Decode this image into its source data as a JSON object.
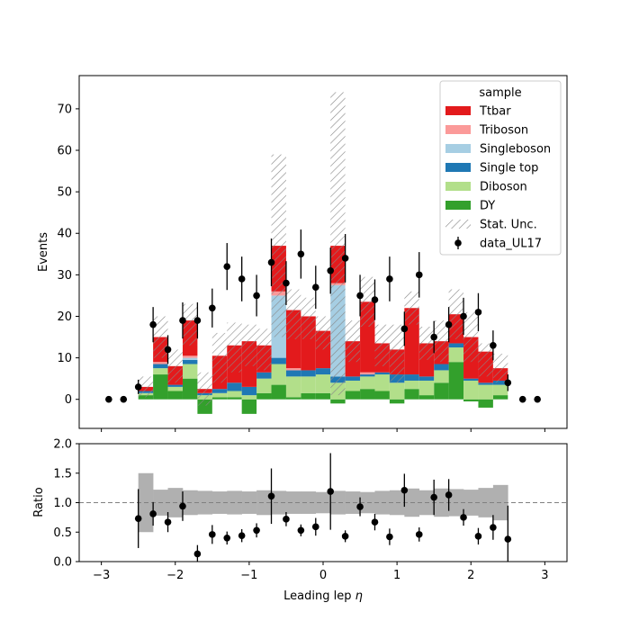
{
  "chart_data": {
    "type": "bar",
    "xlabel": "Leading lep $\\eta$",
    "xlabel_text": "Leading lep ",
    "xlabel_symbol": "η",
    "xlim": [
      -3.3,
      3.3
    ],
    "x_ticks": [
      -3,
      -2,
      -1,
      0,
      1,
      2,
      3
    ],
    "x_tick_labels": [
      "−3",
      "−2",
      "−1",
      "0",
      "1",
      "2",
      "3"
    ],
    "main": {
      "ylabel": "Events",
      "ylim": [
        -7,
        78
      ],
      "y_ticks": [
        0,
        10,
        20,
        30,
        40,
        50,
        60,
        70
      ],
      "y_tick_labels": [
        "0",
        "10",
        "20",
        "30",
        "40",
        "50",
        "60",
        "70"
      ]
    },
    "ratio": {
      "ylabel": "Ratio",
      "ylim": [
        0.0,
        2.0
      ],
      "y_ticks": [
        0.0,
        0.5,
        1.0,
        1.5,
        2.0
      ],
      "y_tick_labels": [
        "0.0",
        "0.5",
        "1.0",
        "1.5",
        "2.0"
      ],
      "reference_line": 1.0
    },
    "bin_edges": [
      -2.5,
      -2.3,
      -2.1,
      -1.9,
      -1.7,
      -1.5,
      -1.3,
      -1.1,
      -0.9,
      -0.7,
      -0.5,
      -0.3,
      -0.1,
      0.1,
      0.3,
      0.5,
      0.7,
      0.9,
      1.1,
      1.3,
      1.5,
      1.7,
      1.9,
      2.1,
      2.3,
      2.5
    ],
    "series": [
      {
        "name": "DY",
        "color": "#33a02c",
        "values": [
          1,
          6,
          2,
          5,
          -3.5,
          0.5,
          0.5,
          -3.5,
          1.5,
          3.5,
          0.5,
          1.5,
          1.5,
          -1,
          2,
          2.5,
          2,
          -1,
          2.5,
          1,
          4,
          9,
          -0.5,
          -2,
          1,
          0.5
        ]
      },
      {
        "name": "Diboson",
        "color": "#b2df8a",
        "values": [
          0.5,
          1.5,
          1,
          3.5,
          1,
          1,
          1.5,
          1,
          3.5,
          5,
          5,
          4,
          4.5,
          4,
          2.5,
          3,
          4,
          4,
          2,
          3.5,
          3,
          3.5,
          4.5,
          3.5,
          2.5,
          0
        ]
      },
      {
        "name": "Single top",
        "color": "#1f78b4",
        "values": [
          0.5,
          1,
          0.5,
          1,
          0.5,
          1,
          2,
          2,
          1.5,
          1.5,
          1.5,
          1.5,
          1.5,
          1.5,
          1,
          0.5,
          0.5,
          2,
          1.5,
          1,
          1.5,
          1,
          0.5,
          0.5,
          1,
          0
        ]
      },
      {
        "name": "Singleboson",
        "color": "#a6cee3",
        "values": [
          0,
          0,
          0,
          0.5,
          0,
          0,
          0,
          0,
          0,
          15,
          0,
          0,
          0,
          22,
          0,
          0,
          0,
          0,
          0,
          0,
          0,
          0,
          0,
          0,
          0,
          0
        ]
      },
      {
        "name": "Triboson",
        "color": "#fb9a99",
        "values": [
          0,
          0.5,
          0,
          0.5,
          0,
          0,
          0,
          0,
          0,
          1,
          0.5,
          0,
          0,
          0.5,
          0,
          0.5,
          0,
          0,
          0,
          0,
          0,
          0,
          0,
          0,
          0,
          0
        ]
      },
      {
        "name": "Ttbar",
        "color": "#e31a1c",
        "values": [
          1,
          6,
          4.5,
          8.5,
          1,
          8,
          9,
          11,
          6.5,
          11,
          14,
          13,
          9,
          9,
          8.5,
          17,
          7,
          6,
          16,
          8,
          5.5,
          7,
          10,
          7.5,
          3,
          0.5
        ]
      }
    ],
    "total_mc": [
      3,
      15,
      8,
      18,
      2.5,
      10,
      12.5,
      13,
      12,
      37,
      20.5,
      19.5,
      16,
      37.5,
      14,
      23.5,
      13,
      11,
      22,
      13.5,
      14,
      20.5,
      15,
      9.5,
      7.5,
      1.5
    ],
    "stat_unc": [
      2.5,
      5,
      4,
      5,
      4,
      6,
      6,
      5,
      5,
      22,
      6,
      5,
      4,
      36.5,
      5,
      6,
      5,
      7,
      4,
      4,
      5,
      6,
      6,
      4,
      3.5,
      1
    ],
    "data": {
      "name": "data_UL17",
      "x": [
        -2.9,
        -2.7,
        -2.5,
        -2.3,
        -2.1,
        -1.9,
        -1.7,
        -1.5,
        -1.3,
        -1.1,
        -0.9,
        -0.7,
        -0.5,
        -0.3,
        -0.1,
        0.1,
        0.3,
        0.5,
        0.7,
        0.9,
        1.1,
        1.3,
        1.5,
        1.7,
        1.9,
        2.1,
        2.3,
        2.5,
        2.7,
        2.9
      ],
      "y": [
        0,
        0,
        3,
        18,
        12,
        19,
        19,
        22,
        32,
        29,
        25,
        33,
        28,
        35,
        27,
        31,
        34,
        25,
        24,
        29,
        17,
        30,
        15,
        18,
        20,
        21,
        13,
        4,
        0,
        0
      ]
    },
    "ratio_points": {
      "x": [
        -2.5,
        -2.3,
        -2.1,
        -1.9,
        -1.7,
        -1.5,
        -1.3,
        -1.1,
        -0.9,
        -0.7,
        -0.5,
        -0.3,
        -0.1,
        0.1,
        0.3,
        0.5,
        0.7,
        0.9,
        1.1,
        1.3,
        1.5,
        1.7,
        1.9,
        2.1,
        2.3,
        2.5
      ],
      "y": [
        0.73,
        0.81,
        0.67,
        0.94,
        0.13,
        0.46,
        0.4,
        0.44,
        0.53,
        1.11,
        0.72,
        0.53,
        0.59,
        1.19,
        0.43,
        0.93,
        0.67,
        0.42,
        1.21,
        0.46,
        1.09,
        1.13,
        0.75,
        0.43,
        0.58,
        0.38
      ],
      "err": [
        0.5,
        0.2,
        0.17,
        0.25,
        0.15,
        0.16,
        0.11,
        0.11,
        0.12,
        0.47,
        0.12,
        0.1,
        0.15,
        0.65,
        0.1,
        0.16,
        0.14,
        0.14,
        0.28,
        0.12,
        0.3,
        0.27,
        0.14,
        0.14,
        0.21,
        0.57
      ]
    },
    "ratio_band": [
      0.5,
      0.22,
      0.25,
      0.21,
      0.2,
      0.19,
      0.2,
      0.19,
      0.21,
      0.2,
      0.19,
      0.19,
      0.18,
      0.2,
      0.19,
      0.18,
      0.2,
      0.21,
      0.24,
      0.21,
      0.24,
      0.23,
      0.22,
      0.25,
      0.3,
      0.4
    ],
    "legend": {
      "title": "sample",
      "position": "top-right",
      "entries": [
        {
          "label": "Ttbar",
          "kind": "patch",
          "color": "#e31a1c"
        },
        {
          "label": "Triboson",
          "kind": "patch",
          "color": "#fb9a99"
        },
        {
          "label": "Singleboson",
          "kind": "patch",
          "color": "#a6cee3"
        },
        {
          "label": "Single top",
          "kind": "patch",
          "color": "#1f78b4"
        },
        {
          "label": "Diboson",
          "kind": "patch",
          "color": "#b2df8a"
        },
        {
          "label": "DY",
          "kind": "patch",
          "color": "#33a02c"
        },
        {
          "label": "Stat. Unc.",
          "kind": "hatch",
          "color": "#888888"
        },
        {
          "label": "data_UL17",
          "kind": "marker",
          "color": "#000000"
        }
      ]
    },
    "colors": {
      "band": "#b0b0b0",
      "hatch": "#888888",
      "data": "#000000",
      "reference_line": "#808080"
    }
  }
}
